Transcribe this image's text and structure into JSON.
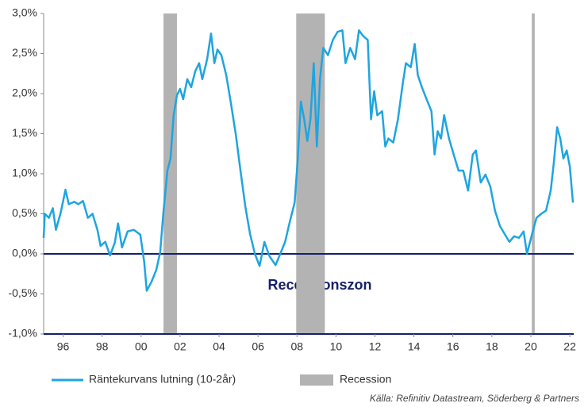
{
  "chart_data": {
    "type": "line",
    "series": [
      {
        "name": "Räntekurvans lutning (10-2år)",
        "color": "#1ea5e0",
        "values": [
          0.2,
          0.5,
          0.45,
          0.57,
          0.3,
          0.52,
          0.8,
          0.62,
          0.65,
          0.62,
          0.66,
          0.45,
          0.5,
          0.3,
          0.1,
          0.15,
          -0.02,
          0.14,
          0.38,
          0.08,
          0.28,
          0.3,
          0.24,
          -0.1,
          -0.46,
          -0.35,
          -0.2,
          0.02,
          0.5,
          1.04,
          1.19,
          1.73,
          1.98,
          2.06,
          1.93,
          2.18,
          2.08,
          2.28,
          2.38,
          2.18,
          2.43,
          2.75,
          2.38,
          2.55,
          2.48,
          2.23,
          1.88,
          1.49,
          1.04,
          0.59,
          0.25,
          0,
          -0.15,
          0.15,
          -0.02,
          -0.08,
          -0.14,
          0,
          0.15,
          0.4,
          0.64,
          1.19,
          1.9,
          1.68,
          1.41,
          1.68,
          2.38,
          1.34,
          2.18,
          2.57,
          2.48,
          2.67,
          2.77,
          2.79,
          2.38,
          2.57,
          2.43,
          2.79,
          2.72,
          2.67,
          1.68,
          2.03,
          1.73,
          1.78,
          1.34,
          1.44,
          1.39,
          1.68,
          2.13,
          2.38,
          2.33,
          2.62,
          2.23,
          2.08,
          1.93,
          1.78,
          1.24,
          1.53,
          1.44,
          1.73,
          1.44,
          1.24,
          1.04,
          1.04,
          0.79,
          1.24,
          1.29,
          0.89,
          0.99,
          0.84,
          0.54,
          0.35,
          0.25,
          0.15,
          0.22,
          0.2,
          0.28,
          0,
          0.15,
          0.3,
          0.45,
          0.5,
          0.54,
          0.79,
          1.14,
          1.58,
          1.44,
          1.19,
          1.29,
          1.09,
          0.64
        ]
      }
    ],
    "x": [
      1995.0,
      1995.06,
      1995.27,
      1995.47,
      1995.63,
      1995.88,
      1996.12,
      1996.29,
      1996.57,
      1996.78,
      1997.02,
      1997.27,
      1997.51,
      1997.76,
      1997.92,
      1998.16,
      1998.41,
      1998.65,
      1998.82,
      1999.02,
      1999.31,
      1999.63,
      1999.96,
      2000.16,
      2000.29,
      2000.53,
      2000.78,
      2000.98,
      2001.14,
      2001.35,
      2001.51,
      2001.67,
      2001.84,
      2002.0,
      2002.16,
      2002.37,
      2002.57,
      2002.78,
      2002.98,
      2003.14,
      2003.39,
      2003.59,
      2003.76,
      2003.92,
      2004.12,
      2004.37,
      2004.61,
      2004.86,
      2005.1,
      2005.35,
      2005.59,
      2005.84,
      2006.08,
      2006.33,
      2006.57,
      2006.73,
      2006.9,
      2007.14,
      2007.39,
      2007.63,
      2007.88,
      2008.04,
      2008.2,
      2008.37,
      2008.53,
      2008.69,
      2008.86,
      2009.02,
      2009.18,
      2009.35,
      2009.59,
      2009.84,
      2010.08,
      2010.33,
      2010.49,
      2010.73,
      2010.98,
      2011.18,
      2011.39,
      2011.63,
      2011.8,
      2011.96,
      2012.12,
      2012.37,
      2012.53,
      2012.69,
      2012.94,
      2013.18,
      2013.43,
      2013.59,
      2013.84,
      2014.04,
      2014.2,
      2014.41,
      2014.65,
      2014.9,
      2015.06,
      2015.22,
      2015.39,
      2015.55,
      2015.8,
      2016.04,
      2016.29,
      2016.53,
      2016.78,
      2017.02,
      2017.18,
      2017.43,
      2017.67,
      2017.92,
      2018.16,
      2018.41,
      2018.65,
      2018.9,
      2019.14,
      2019.39,
      2019.63,
      2019.8,
      2019.96,
      2020.12,
      2020.29,
      2020.53,
      2020.78,
      2021.02,
      2021.18,
      2021.35,
      2021.51,
      2021.67,
      2021.84,
      2022.0,
      2022.16
    ],
    "recession": {
      "name": "Recession",
      "color": "#b3b3b3",
      "ranges": [
        [
          2001.15,
          2001.84
        ],
        [
          2007.96,
          2009.43
        ],
        [
          2020.05,
          2020.2
        ]
      ]
    },
    "hlines": [
      0,
      -1
    ],
    "hline_color": "#14206b",
    "annotation": "Recessionszon",
    "source": "Källa: Refinitiv Datastream, Söderberg & Partners",
    "xlim": [
      1995,
      2022.2
    ],
    "ylim": [
      -1,
      3
    ],
    "xticks": [
      {
        "value": 1996,
        "label": "96"
      },
      {
        "value": 1998,
        "label": "98"
      },
      {
        "value": 2000,
        "label": "00"
      },
      {
        "value": 2002,
        "label": "02"
      },
      {
        "value": 2004,
        "label": "04"
      },
      {
        "value": 2006,
        "label": "06"
      },
      {
        "value": 2008,
        "label": "08"
      },
      {
        "value": 2010,
        "label": "10"
      },
      {
        "value": 2012,
        "label": "12"
      },
      {
        "value": 2014,
        "label": "14"
      },
      {
        "value": 2016,
        "label": "16"
      },
      {
        "value": 2018,
        "label": "18"
      },
      {
        "value": 2020,
        "label": "20"
      },
      {
        "value": 2022,
        "label": "22"
      }
    ],
    "yticks": [
      {
        "value": -1,
        "label": "-1,0%"
      },
      {
        "value": -0.5,
        "label": "-0,5%"
      },
      {
        "value": 0,
        "label": "0,0%"
      },
      {
        "value": 0.5,
        "label": "0,5%"
      },
      {
        "value": 1,
        "label": "1,0%"
      },
      {
        "value": 1.5,
        "label": "1,5%"
      },
      {
        "value": 2,
        "label": "2,0%"
      },
      {
        "value": 2.5,
        "label": "2,5%"
      },
      {
        "value": 3,
        "label": "3,0%"
      }
    ],
    "grid": false
  }
}
